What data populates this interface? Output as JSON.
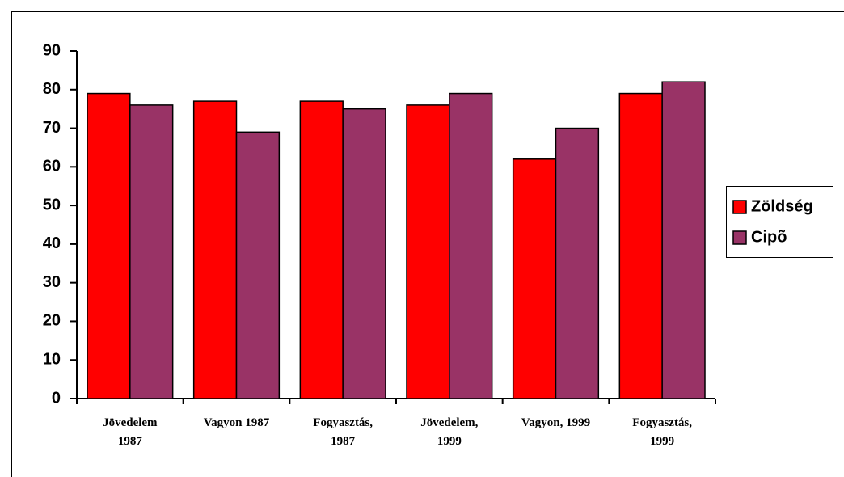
{
  "chart_data": {
    "type": "bar",
    "categories": [
      "Jövedelem\n1987",
      "Vagyon 1987",
      "Fogyasztás,\n1987",
      "Jövedelem,\n1999",
      "Vagyon, 1999",
      "Fogyasztás,\n1999"
    ],
    "series": [
      {
        "name": "Zöldség",
        "color": "#ff0000",
        "values": [
          79,
          77,
          77,
          76,
          62,
          79
        ]
      },
      {
        "name": "Cipõ",
        "color": "#993366",
        "values": [
          76,
          69,
          75,
          79,
          70,
          82
        ]
      }
    ],
    "ylim": [
      0,
      90
    ],
    "yticks": [
      0,
      10,
      20,
      30,
      40,
      50,
      60,
      70,
      80,
      90
    ],
    "grid": false,
    "legend": "right"
  }
}
